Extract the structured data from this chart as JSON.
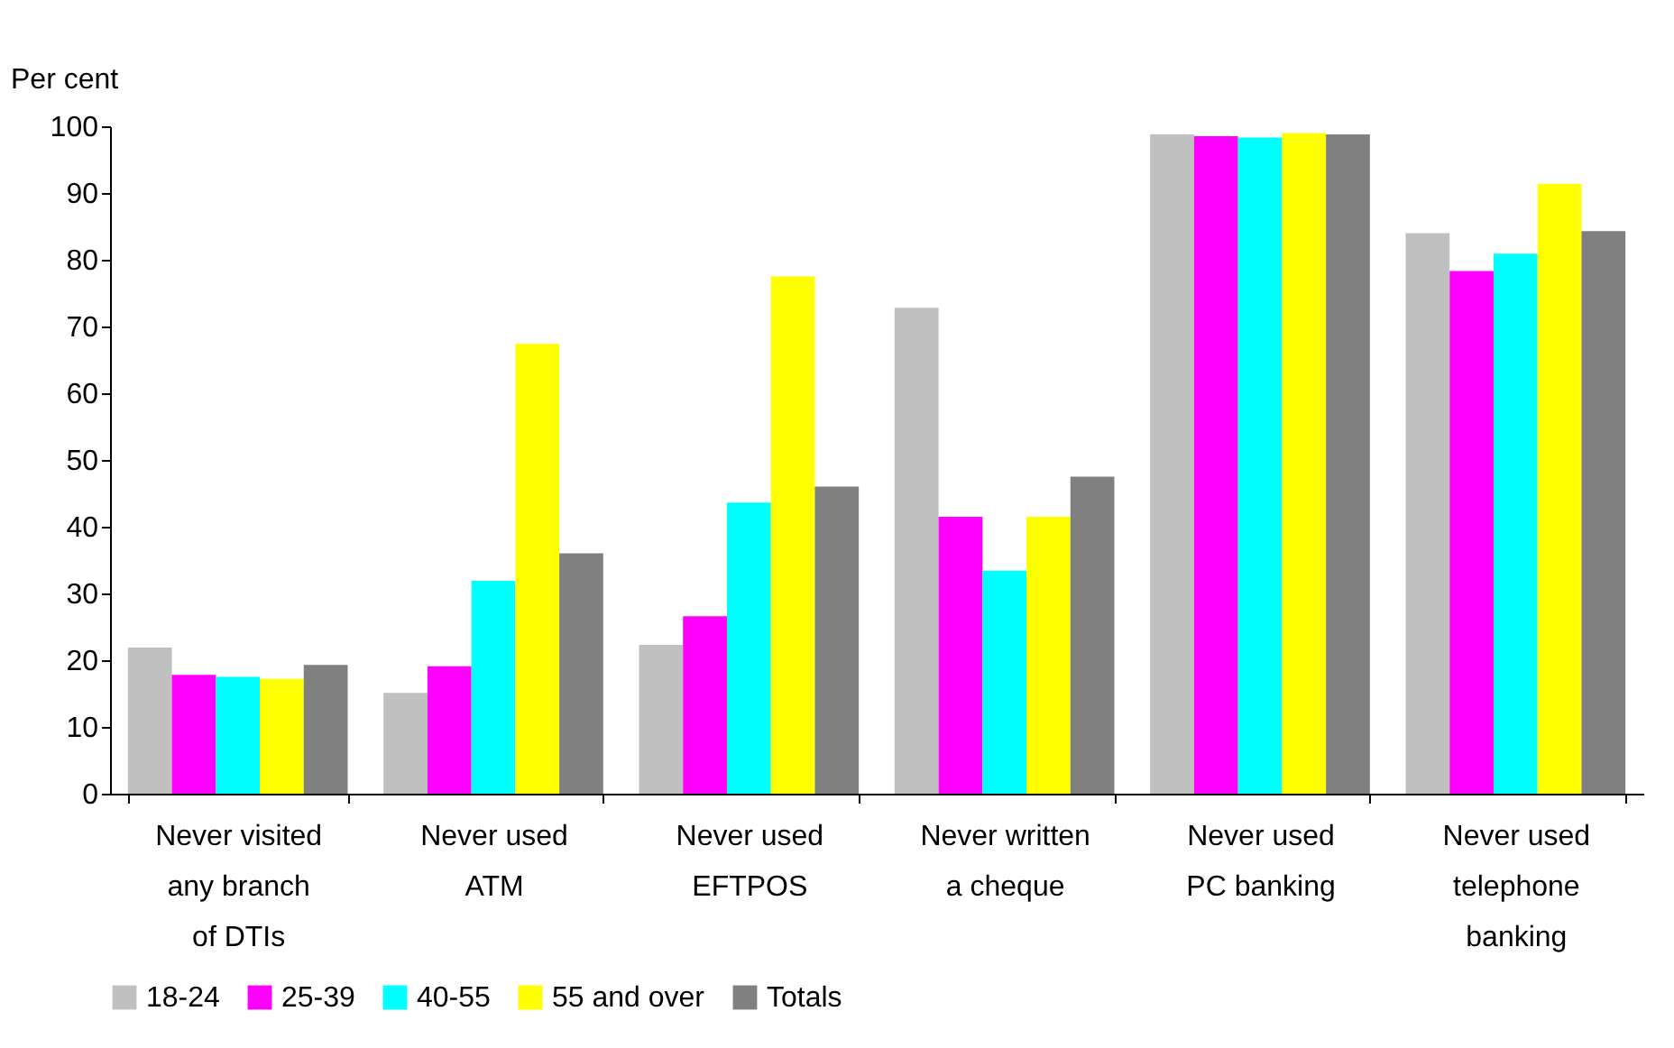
{
  "chart_data": {
    "type": "bar",
    "ylabel": "Per cent",
    "categories": [
      "Never visited\nany branch\nof DTIs",
      "Never used\nATM",
      "Never used\nEFTPOS",
      "Never written\na cheque",
      "Never used\nPC banking",
      "Never used\ntelephone\nbanking"
    ],
    "series": [
      {
        "name": "18-24",
        "color": "#c0c0c0",
        "values": [
          21.9,
          15.1,
          22.3,
          72.8,
          98.8,
          84.0
        ]
      },
      {
        "name": "25-39",
        "color": "#ff00ff",
        "values": [
          17.8,
          19.1,
          26.6,
          41.5,
          98.5,
          78.3
        ]
      },
      {
        "name": "40-55",
        "color": "#00ffff",
        "values": [
          17.5,
          31.9,
          43.6,
          33.4,
          98.3,
          80.9
        ]
      },
      {
        "name": "55 and over",
        "color": "#ffff00",
        "values": [
          17.2,
          67.4,
          77.5,
          41.5,
          99.0,
          91.4
        ]
      },
      {
        "name": "Totals",
        "color": "#808080",
        "values": [
          19.3,
          36.0,
          46.0,
          47.5,
          98.8,
          84.3
        ]
      }
    ],
    "ylim": [
      0,
      100
    ],
    "yticks": [
      0,
      10,
      20,
      30,
      40,
      50,
      60,
      70,
      80,
      90,
      100
    ],
    "grid": false,
    "legend": "bottom"
  }
}
